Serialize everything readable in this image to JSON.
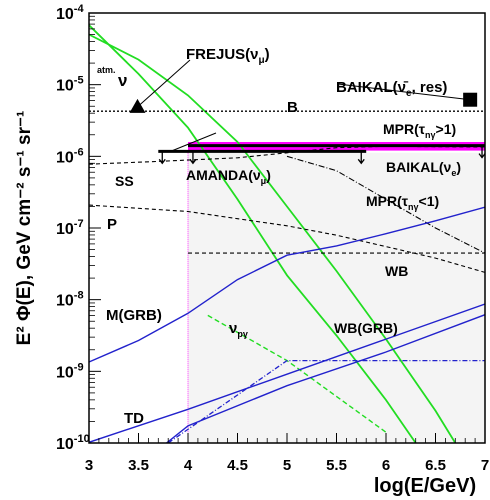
{
  "chart_data": {
    "type": "line",
    "title": "",
    "xlabel": "log(E/GeV)",
    "ylabel": "E² Φ(E), GeV cm⁻² s⁻¹ sr⁻¹",
    "xlim": [
      3,
      7
    ],
    "ylim_log10": [
      -10,
      -4
    ],
    "y_scale": "log",
    "x_ticks": [
      "3",
      "3.5",
      "4",
      "4.5",
      "5",
      "5.5",
      "6",
      "6.5",
      "7"
    ],
    "y_tick_mantissa": "10",
    "y_tick_exponents": [
      "-10",
      "-9",
      "-8",
      "-7",
      "-6",
      "-5",
      "-4"
    ],
    "grid": false,
    "colors": {
      "theory": "#2222cc",
      "atmospheric": "#22dd22",
      "limits": "#000000",
      "mpr_band": "#ff00ff",
      "amanda_region": "#f4f4f4"
    },
    "labels": {
      "frejus": "FREJUS(ν",
      "frejus_sub": "μ",
      "baikal_res": "BAIKAL(ν̄",
      "baikal_res_sub": "e",
      "baikal_res_tail": ", res)",
      "baikal_e": "BAIKAL(ν",
      "baikal_e_sub": "e",
      "amanda": "AMANDA(ν",
      "amanda_sub": "μ",
      "mpr_gt": "MPR(τ",
      "mpr_gt_sub": "nγ",
      "mpr_gt_tail": ">1)",
      "mpr_lt": "MPR(τ",
      "mpr_lt_sub": "nγ",
      "mpr_lt_tail": "<1)",
      "atm": "atm.",
      "atm_nu": "ν",
      "b": "B",
      "ss": "SS",
      "p": "P",
      "wb": "WB",
      "wbgrb": "WB(GRB)",
      "mgrb": "M(GRB)",
      "nupp": "ν",
      "nupp_sub": "pγ",
      "td": "TD",
      "close_paren": ")"
    },
    "series": [
      {
        "style": "atmospheric",
        "x": [
          3.0,
          3.5,
          4.0,
          4.5,
          5.0,
          5.5,
          6.0,
          6.3
        ],
        "y_log10": [
          -4.17,
          -4.85,
          -5.6,
          -6.6,
          -7.66,
          -8.5,
          -9.4,
          -10.0
        ]
      },
      {
        "style": "atmospheric",
        "x": [
          3.0,
          3.5,
          4.0,
          4.5,
          5.0,
          5.5,
          6.0,
          6.5,
          6.7
        ],
        "y_log10": [
          -4.3,
          -4.65,
          -5.15,
          -5.8,
          -6.7,
          -7.6,
          -8.55,
          -9.55,
          -10.0
        ]
      },
      {
        "style": "atmospheric_dashed",
        "x": [
          4.2,
          5.0,
          6.0
        ],
        "y_log10": [
          -8.22,
          -8.85,
          -9.85
        ]
      },
      {
        "name": "B",
        "style": "dotted",
        "x": [
          3.0,
          7.0
        ],
        "y_log10": [
          -5.37,
          -5.37
        ]
      },
      {
        "name": "SS",
        "style": "dashed",
        "x": [
          3.0,
          3.7,
          4.5,
          5.0,
          5.5,
          6.0,
          7.0
        ],
        "y_log10": [
          -6.11,
          -6.07,
          -6.02,
          -5.95,
          -5.88,
          -5.86,
          -5.87
        ]
      },
      {
        "name": "P",
        "style": "dashed",
        "x": [
          3.0,
          4.0,
          4.5,
          5.0,
          5.5,
          6.0,
          6.5,
          7.0
        ],
        "y_log10": [
          -6.68,
          -6.77,
          -6.87,
          -6.97,
          -7.1,
          -7.26,
          -7.42,
          -7.62
        ]
      },
      {
        "name": "WB",
        "style": "dashed",
        "x": [
          4.0,
          7.0
        ],
        "y_log10": [
          -7.35,
          -7.35
        ]
      },
      {
        "name": "MPR(τnγ<1)",
        "style": "dashdot",
        "x": [
          5.0,
          5.5,
          6.0,
          6.5,
          7.0
        ],
        "y_log10": [
          -6.0,
          -6.2,
          -6.6,
          -7.0,
          -7.35
        ]
      },
      {
        "name": "M(GRB)",
        "style": "theory",
        "x": [
          3.0,
          3.5,
          4.0,
          4.5,
          5.0,
          5.5,
          6.0,
          6.5,
          7.0
        ],
        "y_log10": [
          -8.87,
          -8.57,
          -8.19,
          -7.72,
          -7.38,
          -7.25,
          -7.08,
          -6.9,
          -6.71
        ]
      },
      {
        "name": "WB(GRB)",
        "style": "theory",
        "x": [
          3.0,
          4.0,
          5.0,
          6.0,
          7.0
        ],
        "y_log10": [
          -10.87,
          -9.76,
          -9.2,
          -8.73,
          -8.21
        ]
      },
      {
        "name": "TD",
        "style": "theory",
        "x": [
          3.0,
          4.0,
          5.0,
          6.0,
          7.0
        ],
        "y_log10": [
          -9.99,
          -9.53,
          -9.04,
          -8.55,
          -8.06
        ]
      },
      {
        "name": "νpγ",
        "style": "theory_dashdot",
        "x": [
          3.8,
          4.5,
          5.0,
          7.0
        ],
        "y_log10": [
          -10.0,
          -9.33,
          -8.85,
          -8.85
        ]
      }
    ],
    "points": [
      {
        "name": "FREJUS",
        "marker": "triangle",
        "x": 3.49,
        "y_log10": -5.31
      },
      {
        "name": "BAIKAL res",
        "marker": "square",
        "x": 6.85,
        "y_log10": -5.21
      }
    ],
    "limits": [
      {
        "name": "AMANDA",
        "x": [
          3.7,
          5.8
        ],
        "y_log10": -5.93
      },
      {
        "name": "BAIKAL",
        "x": [
          4.0,
          7.0
        ],
        "y_log10": -5.85
      }
    ],
    "band": {
      "name": "MPR(τnγ>1)",
      "x": [
        4.0,
        7.0
      ],
      "y_log10": [
        -5.92,
        -5.8
      ]
    },
    "amanda_region": {
      "x": [
        4.0,
        7.0
      ],
      "y_log10": [
        -10.0,
        -5.95
      ]
    }
  }
}
